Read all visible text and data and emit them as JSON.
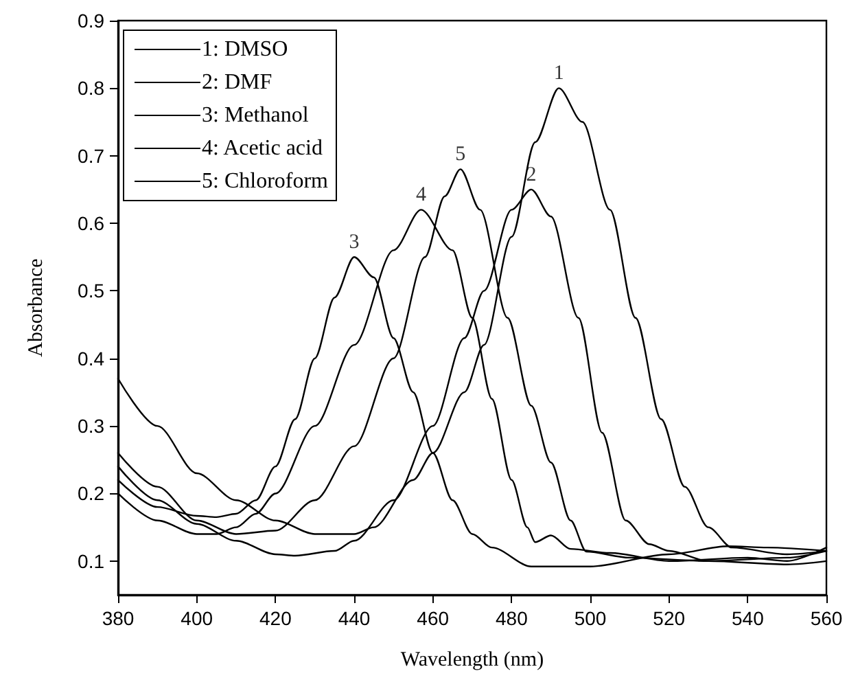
{
  "chart_data": {
    "type": "line",
    "xlabel": "Wavelength (nm)",
    "ylabel": "Absorbance",
    "xlim": [
      380,
      560
    ],
    "xticks": [
      380,
      400,
      420,
      440,
      460,
      480,
      500,
      520,
      540,
      560
    ],
    "ylim": [
      0.05,
      0.9
    ],
    "yticks": [
      0.1,
      0.2,
      0.3,
      0.4,
      0.5,
      0.6,
      0.7,
      0.8,
      0.9
    ],
    "grid": false,
    "legend": "top left",
    "marker": "none",
    "line_style": "solid",
    "series": [
      {
        "name": "1: DMSO",
        "color": "#000000",
        "x": [
          380,
          390,
          400,
          410,
          420,
          430,
          440,
          445,
          455,
          460,
          468,
          473,
          480,
          486,
          492,
          498,
          505,
          511.5,
          518,
          524,
          530,
          536,
          550,
          560
        ],
        "values": [
          0.37,
          0.3,
          0.23,
          0.19,
          0.16,
          0.14,
          0.14,
          0.15,
          0.22,
          0.26,
          0.35,
          0.42,
          0.58,
          0.72,
          0.8,
          0.75,
          0.62,
          0.46,
          0.31,
          0.21,
          0.15,
          0.12,
          0.11,
          0.115
        ]
      },
      {
        "name": "2: DMF",
        "color": "#000000",
        "x": [
          380,
          390,
          400,
          410,
          420,
          425,
          435,
          440,
          450,
          460,
          468,
          473,
          480,
          485,
          490,
          497,
          503,
          509,
          515,
          520,
          530,
          550,
          560
        ],
        "values": [
          0.24,
          0.19,
          0.155,
          0.13,
          0.11,
          0.108,
          0.115,
          0.13,
          0.19,
          0.3,
          0.43,
          0.5,
          0.62,
          0.65,
          0.61,
          0.46,
          0.29,
          0.16,
          0.125,
          0.115,
          0.1,
          0.095,
          0.1
        ]
      },
      {
        "name": "3: Methanol",
        "color": "#000000",
        "x": [
          380,
          390,
          400,
          405,
          410,
          415,
          420,
          425,
          430,
          435,
          440,
          445,
          450,
          455,
          460,
          465,
          470,
          475,
          485,
          500,
          520,
          535,
          545,
          560
        ],
        "values": [
          0.22,
          0.18,
          0.167,
          0.165,
          0.17,
          0.19,
          0.24,
          0.31,
          0.4,
          0.49,
          0.55,
          0.52,
          0.43,
          0.35,
          0.26,
          0.19,
          0.14,
          0.12,
          0.092,
          0.092,
          0.11,
          0.122,
          0.12,
          0.115
        ]
      },
      {
        "name": "4: Acetic acid",
        "color": "#000000",
        "x": [
          380,
          390,
          400,
          405,
          410,
          415,
          420,
          430,
          440,
          450,
          457,
          465,
          470,
          475,
          480,
          484,
          486,
          490,
          495,
          505,
          520,
          540,
          550,
          560
        ],
        "values": [
          0.2,
          0.16,
          0.14,
          0.14,
          0.15,
          0.17,
          0.2,
          0.3,
          0.42,
          0.56,
          0.62,
          0.56,
          0.46,
          0.34,
          0.22,
          0.15,
          0.128,
          0.138,
          0.118,
          0.112,
          0.1,
          0.105,
          0.1,
          0.12
        ]
      },
      {
        "name": "5: Chloroform",
        "color": "#000000",
        "x": [
          380,
          390,
          400,
          410,
          420,
          430,
          440,
          450,
          458,
          463,
          467,
          472,
          479,
          485,
          490,
          495,
          499,
          510,
          530,
          550,
          560
        ],
        "values": [
          0.26,
          0.21,
          0.16,
          0.14,
          0.145,
          0.19,
          0.27,
          0.4,
          0.55,
          0.64,
          0.68,
          0.62,
          0.46,
          0.33,
          0.246,
          0.16,
          0.114,
          0.105,
          0.1,
          0.105,
          0.115
        ]
      }
    ],
    "annotations": [
      {
        "text": "1",
        "x": 492,
        "y": 0.8
      },
      {
        "text": "2",
        "x": 485,
        "y": 0.65
      },
      {
        "text": "3",
        "x": 440,
        "y": 0.55
      },
      {
        "text": "4",
        "x": 457,
        "y": 0.62
      },
      {
        "text": "5",
        "x": 467,
        "y": 0.68
      }
    ]
  }
}
